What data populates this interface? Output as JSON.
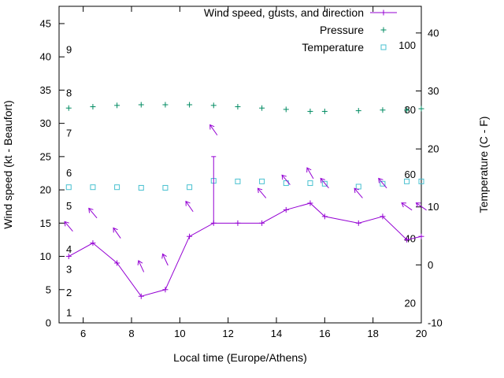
{
  "colors": {
    "wind": "#9400d3",
    "pressure": "#008b62",
    "temperature": "#48c0d0",
    "axis": "#000000",
    "background": "#ffffff"
  },
  "chart_data": {
    "type": "line",
    "title": "",
    "xlabel": "Local time (Europe/Athens)",
    "ylabel_left": "Wind speed (kt - Beaufort)",
    "ylabel_right": "Temperature (C - F)",
    "x_range": [
      5,
      20
    ],
    "x_ticks": [
      6,
      8,
      10,
      12,
      14,
      16,
      18,
      20
    ],
    "wind_axis": {
      "range": [
        0,
        47.6
      ],
      "ticks": [
        0,
        5,
        10,
        15,
        20,
        25,
        30,
        35,
        40,
        45
      ]
    },
    "temp_axis": {
      "range": [
        -10,
        44.6
      ],
      "ticks": [
        -10,
        0,
        10,
        20,
        30,
        40
      ]
    },
    "beaufort_labels": [
      {
        "label": "1",
        "kt": 1.5
      },
      {
        "label": "2",
        "kt": 4.5
      },
      {
        "label": "3",
        "kt": 8
      },
      {
        "label": "4",
        "kt": 11
      },
      {
        "label": "5",
        "kt": 17.5
      },
      {
        "label": "6",
        "kt": 22.5
      },
      {
        "label": "7",
        "kt": 28.5
      },
      {
        "label": "8",
        "kt": 34.5
      },
      {
        "label": "9",
        "kt": 41
      }
    ],
    "fahrenheit_labels": [
      {
        "label": "20",
        "c": -6.67
      },
      {
        "label": "40",
        "c": 4.44
      },
      {
        "label": "60",
        "c": 15.56
      },
      {
        "label": "80",
        "c": 26.67
      },
      {
        "label": "100",
        "c": 37.78
      }
    ],
    "x": [
      5.4,
      6.4,
      7.4,
      8.4,
      9.4,
      10.4,
      11.4,
      12.4,
      13.4,
      14.4,
      15.4,
      16.0,
      17.4,
      18.4,
      19.4,
      20.0
    ],
    "series": [
      {
        "name": "Wind speed, gusts, and direction",
        "axis": "left",
        "marker": "plus",
        "color_key": "wind",
        "values": [
          10,
          12,
          9,
          4,
          5,
          13,
          15,
          15,
          15,
          17,
          18,
          16,
          15,
          16,
          12.5,
          13
        ],
        "gusts": [
          null,
          null,
          null,
          null,
          null,
          null,
          25,
          null,
          null,
          null,
          null,
          null,
          null,
          null,
          null,
          null
        ],
        "arrows": [
          {
            "x": 5.4,
            "kt": 14.5,
            "deg": -40
          },
          {
            "x": 6.4,
            "kt": 16.5,
            "deg": -40
          },
          {
            "x": 7.4,
            "kt": 13.5,
            "deg": -35
          },
          {
            "x": 8.4,
            "kt": 8.5,
            "deg": -25
          },
          {
            "x": 9.4,
            "kt": 9.5,
            "deg": -25
          },
          {
            "x": 10.4,
            "kt": 17.5,
            "deg": -35
          },
          {
            "x": 11.4,
            "kt": 29,
            "deg": -35
          },
          {
            "x": 13.4,
            "kt": 19.5,
            "deg": -40
          },
          {
            "x": 14.4,
            "kt": 21.5,
            "deg": -40
          },
          {
            "x": 15.4,
            "kt": 22.5,
            "deg": -30
          },
          {
            "x": 16.0,
            "kt": 21.0,
            "deg": -40
          },
          {
            "x": 17.4,
            "kt": 19.5,
            "deg": -40
          },
          {
            "x": 18.4,
            "kt": 21.0,
            "deg": -40
          },
          {
            "x": 19.4,
            "kt": 17.5,
            "deg": -55
          },
          {
            "x": 20.0,
            "kt": 17.5,
            "deg": -55
          }
        ]
      },
      {
        "name": "Pressure",
        "axis": "left",
        "marker": "plus",
        "color_key": "pressure",
        "values": [
          32.3,
          32.5,
          32.7,
          32.8,
          32.8,
          32.8,
          32.7,
          32.5,
          32.3,
          32.1,
          31.8,
          31.8,
          31.9,
          32.0,
          32.0,
          32.2
        ]
      },
      {
        "name": "Temperature",
        "axis": "right",
        "marker": "square",
        "color_key": "temperature",
        "values_c": [
          13.4,
          13.4,
          13.4,
          13.3,
          13.3,
          13.4,
          14.5,
          14.4,
          14.4,
          14.1,
          14.1,
          14.0,
          13.5,
          14.0,
          14.4,
          14.4
        ]
      }
    ],
    "legend": {
      "position": "top-right-inside"
    }
  }
}
